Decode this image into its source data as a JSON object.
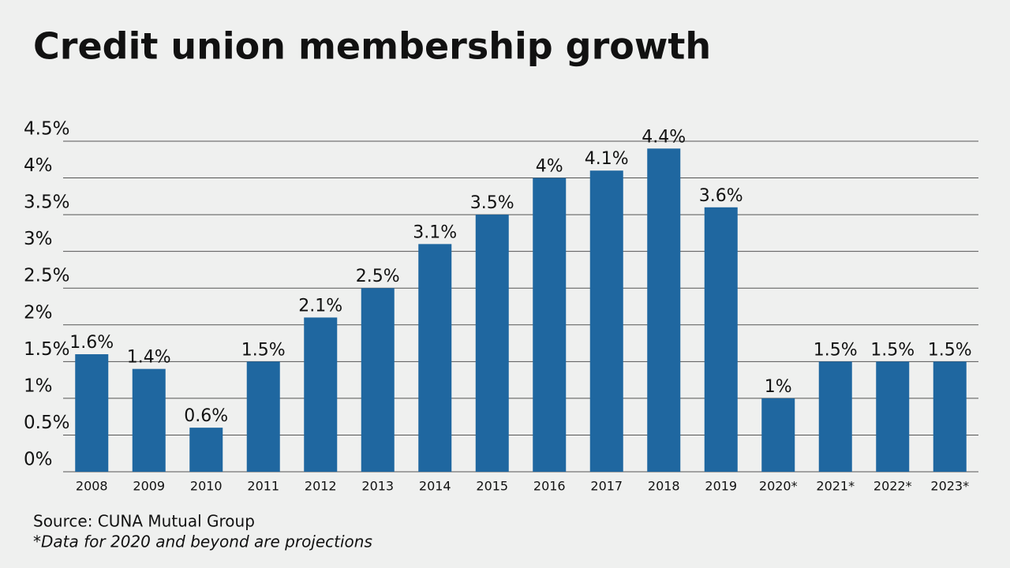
{
  "chart_data": {
    "type": "bar",
    "title": "Credit union membership growth",
    "categories": [
      "2008",
      "2009",
      "2010",
      "2011",
      "2012",
      "2013",
      "2014",
      "2015",
      "2016",
      "2017",
      "2018",
      "2019",
      "2020*",
      "2021*",
      "2022*",
      "2023*"
    ],
    "values": [
      1.6,
      1.4,
      0.6,
      1.5,
      2.1,
      2.5,
      3.1,
      3.5,
      4,
      4.1,
      4.4,
      3.6,
      1,
      1.5,
      1.5,
      1.5
    ],
    "value_labels": [
      "1.6%",
      "1.4%",
      "0.6%",
      "1.5%",
      "2.1%",
      "2.5%",
      "3.1%",
      "3.5%",
      "4%",
      "4.1%",
      "4.4%",
      "3.6%",
      "1%",
      "1.5%",
      "1.5%",
      "1.5%"
    ],
    "color": "#1f67a0",
    "ylim": [
      0,
      4.5
    ],
    "yticks": [
      {
        "value": 0,
        "label": "0%"
      },
      {
        "value": 0.5,
        "label": "0.5%"
      },
      {
        "value": 1,
        "label": "1%"
      },
      {
        "value": 1.5,
        "label": "1.5%"
      },
      {
        "value": 2,
        "label": "2%"
      },
      {
        "value": 2.5,
        "label": "2.5%"
      },
      {
        "value": 3,
        "label": "3%"
      },
      {
        "value": 3.5,
        "label": "3.5%"
      },
      {
        "value": 4,
        "label": "4%"
      },
      {
        "value": 4.5,
        "label": "4.5%"
      }
    ],
    "grid": true,
    "source": "Source: CUNA Mutual Group",
    "note": "*Data for 2020 and beyond are projections"
  }
}
